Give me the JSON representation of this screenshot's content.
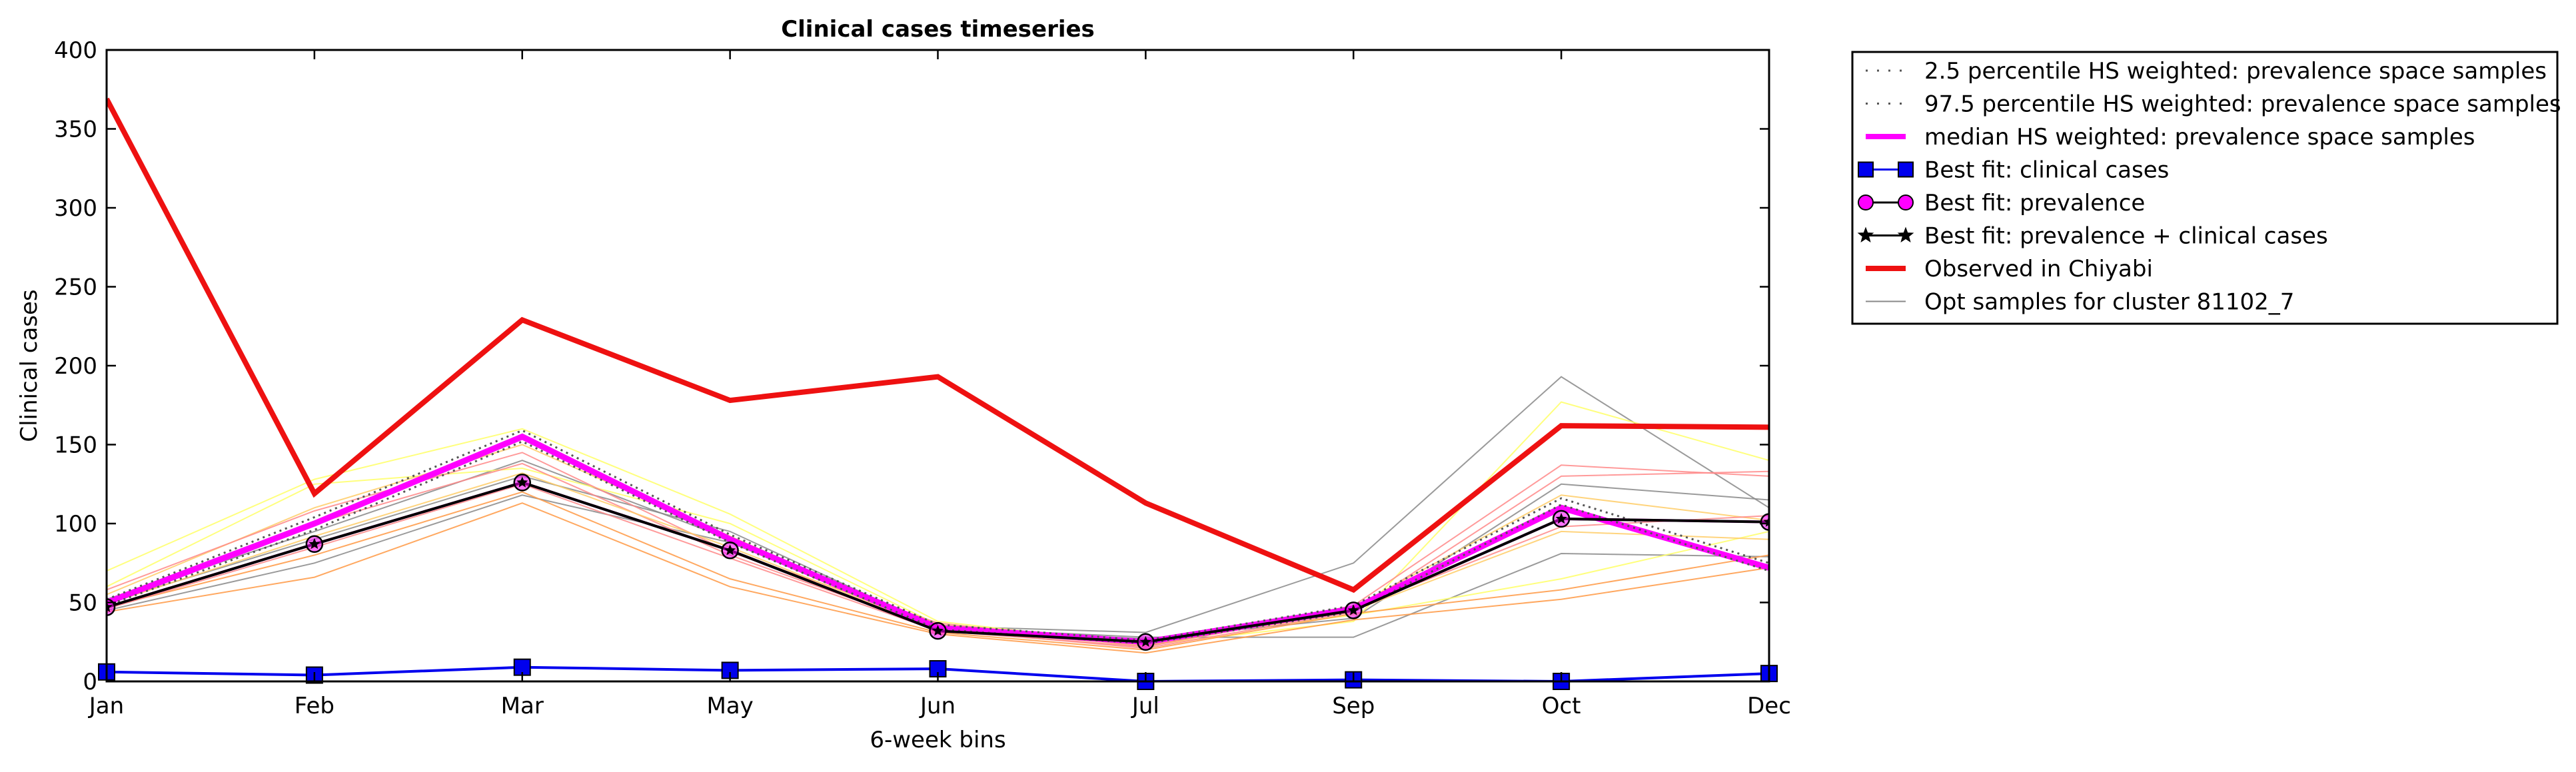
{
  "chart_data": {
    "type": "line",
    "title": "Clinical cases timeseries",
    "xlabel": "6-week bins",
    "ylabel": "Clinical cases",
    "categories": [
      "Jan",
      "Feb",
      "Mar",
      "May",
      "Jun",
      "Jul",
      "Sep",
      "Oct",
      "Dec"
    ],
    "ylim": [
      0,
      400
    ],
    "yticks": [
      0,
      50,
      100,
      150,
      200,
      250,
      300,
      350,
      400
    ],
    "grid": false,
    "legend_position": "outside-right",
    "series": [
      {
        "name": "2.5 percentile HS weighted: prevalence space samples",
        "color": "#555555",
        "style": "dotted",
        "values": [
          48,
          96,
          152,
          88,
          33,
          24,
          44,
          112,
          70
        ]
      },
      {
        "name": "97.5 percentile HS weighted: prevalence space samples",
        "color": "#555555",
        "style": "dotted",
        "values": [
          52,
          104,
          159,
          93,
          36,
          26,
          48,
          116,
          75
        ]
      },
      {
        "name": "median HS weighted: prevalence space samples",
        "color": "#ff00ff",
        "style": "solid-thick",
        "values": [
          50,
          100,
          155,
          90,
          34,
          25,
          46,
          110,
          72
        ]
      },
      {
        "name": "Best fit: clinical cases",
        "color": "#0000ee",
        "style": "square",
        "values": [
          6,
          4,
          9,
          7,
          8,
          0,
          1,
          0,
          5
        ]
      },
      {
        "name": "Best fit: prevalence",
        "color": "#ff00ff",
        "style": "circle",
        "values": [
          47,
          87,
          126,
          83,
          32,
          25,
          45,
          103,
          101
        ]
      },
      {
        "name": "Best fit: prevalence + clinical cases",
        "color": "#000000",
        "style": "star",
        "values": [
          47,
          87,
          126,
          83,
          32,
          25,
          45,
          103,
          101
        ]
      },
      {
        "name": "Observed in Chiyabi",
        "color": "#ee1111",
        "style": "solid-thick",
        "values": [
          369,
          119,
          229,
          178,
          193,
          113,
          58,
          162,
          161
        ]
      },
      {
        "name": "Opt samples for cluster 81102_7",
        "color": "#888888",
        "style": "thin",
        "values": [
          45,
          75,
          118,
          88,
          35,
          31,
          75,
          193,
          110
        ]
      }
    ],
    "sample_lines": [
      {
        "color": "#888888",
        "values": [
          45,
          75,
          118,
          88,
          35,
          31,
          75,
          193,
          110
        ]
      },
      {
        "color": "#888888",
        "values": [
          50,
          90,
          130,
          95,
          34,
          28,
          28,
          81,
          79
        ]
      },
      {
        "color": "#888888",
        "values": [
          52,
          95,
          140,
          90,
          33,
          27,
          40,
          125,
          115
        ]
      },
      {
        "color": "#ffff66",
        "values": [
          70,
          128,
          160,
          106,
          38,
          23,
          38,
          177,
          140
        ]
      },
      {
        "color": "#ffff66",
        "values": [
          60,
          125,
          135,
          100,
          36,
          26,
          42,
          65,
          95
        ]
      },
      {
        "color": "#ffcc66",
        "values": [
          55,
          110,
          150,
          92,
          34,
          24,
          47,
          118,
          102
        ]
      },
      {
        "color": "#ff9944",
        "values": [
          44,
          66,
          113,
          60,
          30,
          18,
          39,
          52,
          72
        ]
      },
      {
        "color": "#ff9944",
        "values": [
          47,
          80,
          120,
          65,
          31,
          20,
          43,
          58,
          80
        ]
      },
      {
        "color": "#ff8888",
        "values": [
          58,
          108,
          145,
          82,
          37,
          22,
          48,
          137,
          130
        ]
      },
      {
        "color": "#ff8888",
        "values": [
          50,
          100,
          138,
          80,
          33,
          21,
          44,
          130,
          133
        ]
      },
      {
        "color": "#ff8888",
        "values": [
          46,
          85,
          125,
          78,
          32,
          22,
          46,
          98,
          105
        ]
      },
      {
        "color": "#ffcc66",
        "values": [
          49,
          92,
          132,
          85,
          33,
          23,
          45,
          95,
          90
        ]
      }
    ]
  }
}
